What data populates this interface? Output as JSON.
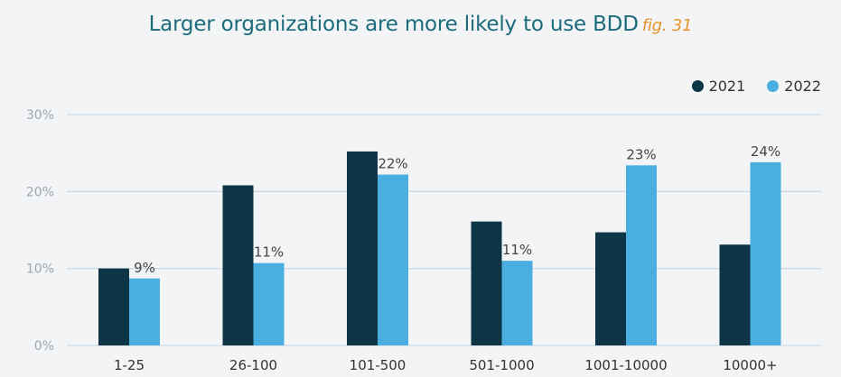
{
  "chart_data": {
    "type": "bar",
    "title": "Larger organizations are more likely to use BDD",
    "fig_label": "fig. 31",
    "categories": [
      "1-25",
      "26-100",
      "101-500",
      "501-1000",
      "1001-10000",
      "10000+"
    ],
    "series": [
      {
        "name": "2021",
        "color": "#0d3545",
        "values": [
          10,
          20.8,
          25.2,
          16.1,
          14.7,
          13.1
        ]
      },
      {
        "name": "2022",
        "color": "#4aaee0",
        "values": [
          8.7,
          10.7,
          22.2,
          11.0,
          23.4,
          23.8
        ]
      }
    ],
    "data_labels": [
      {
        "series": 1,
        "index": 0,
        "text": "9%"
      },
      {
        "series": 1,
        "index": 1,
        "text": "11%"
      },
      {
        "series": 1,
        "index": 2,
        "text": "22%"
      },
      {
        "series": 1,
        "index": 3,
        "text": "11%"
      },
      {
        "series": 1,
        "index": 4,
        "text": "23%"
      },
      {
        "series": 1,
        "index": 5,
        "text": "24%"
      }
    ],
    "yticks": [
      {
        "value": 0,
        "label": "0%"
      },
      {
        "value": 10,
        "label": "10%"
      },
      {
        "value": 20,
        "label": "20%"
      },
      {
        "value": 30,
        "label": "30%"
      }
    ],
    "ylim": [
      0,
      30
    ],
    "grid": true,
    "legend_position": "top-right",
    "gridline_color": "#c9d9e6"
  }
}
